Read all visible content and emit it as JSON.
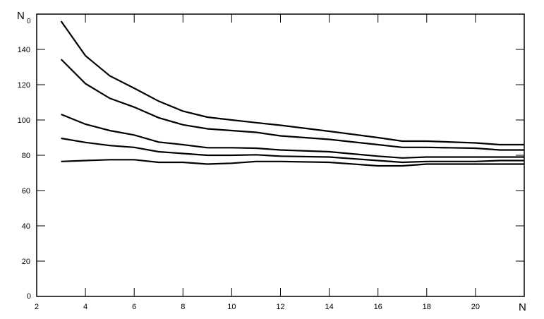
{
  "chart_data": {
    "type": "line",
    "ylabel": "N",
    "ylabel_subscript": "0",
    "xlabel": "N",
    "xlim": [
      2,
      22
    ],
    "ylim": [
      0,
      160
    ],
    "x_ticks": [
      2,
      4,
      6,
      8,
      10,
      12,
      14,
      16,
      18,
      20
    ],
    "y_ticks": [
      0,
      20,
      40,
      60,
      80,
      100,
      120,
      140
    ],
    "grid": false,
    "line_color": "#000000",
    "x": [
      3,
      4,
      5,
      6,
      7,
      8,
      9,
      10,
      11,
      12,
      14,
      16,
      17,
      18,
      20,
      21,
      22
    ],
    "series": [
      {
        "values": [
          156,
          136.4,
          125,
          118,
          110.7,
          105,
          101.6,
          100,
          98.5,
          97,
          93.6,
          90,
          88,
          88,
          87,
          86,
          86
        ]
      },
      {
        "values": [
          134.4,
          120.6,
          112.3,
          107.3,
          101.3,
          97.3,
          95,
          94,
          93,
          91,
          89,
          86,
          84.5,
          84.5,
          84,
          83,
          83
        ]
      },
      {
        "values": [
          103.2,
          97.6,
          94,
          91.5,
          87.5,
          86,
          84.3,
          84.3,
          84,
          83,
          82,
          79.5,
          78.5,
          79,
          79,
          79,
          79
        ]
      },
      {
        "values": [
          89.6,
          87.3,
          85.5,
          84.5,
          82,
          81,
          80,
          80,
          80.3,
          79.5,
          79,
          77,
          76,
          76.5,
          76.5,
          77,
          77
        ]
      },
      {
        "values": [
          76.5,
          77,
          77.5,
          77.5,
          76,
          76,
          75,
          75.5,
          76.5,
          76.5,
          76,
          74,
          74,
          75,
          75,
          75,
          75
        ]
      }
    ]
  }
}
